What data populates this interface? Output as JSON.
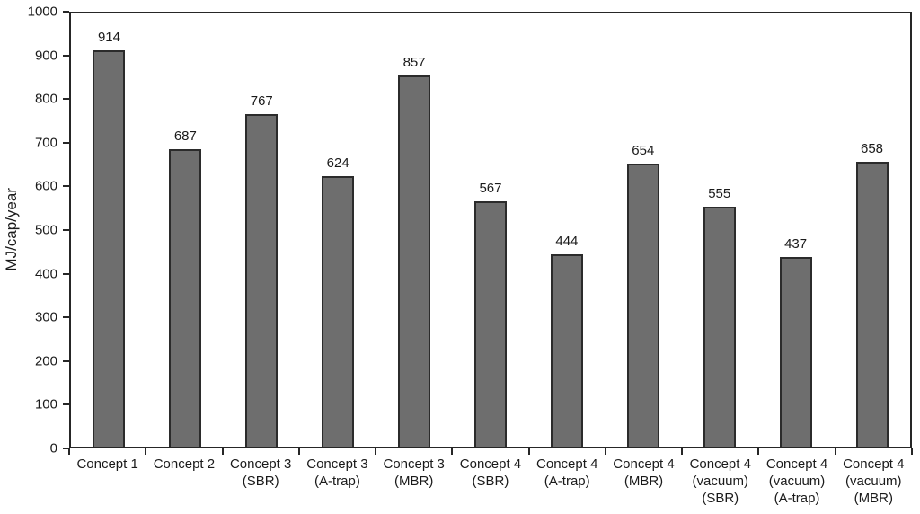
{
  "chart_data": {
    "type": "bar",
    "title": "",
    "xlabel": "",
    "ylabel": "MJ/cap/year",
    "ylim": [
      0,
      1000
    ],
    "ytick_step": 100,
    "grid": false,
    "legend": null,
    "categories": [
      [
        "Concept 1"
      ],
      [
        "Concept 2"
      ],
      [
        "Concept 3",
        "(SBR)"
      ],
      [
        "Concept 3",
        "(A-trap)"
      ],
      [
        "Concept 3",
        "(MBR)"
      ],
      [
        "Concept 4",
        "(SBR)"
      ],
      [
        "Concept 4",
        "(A-trap)"
      ],
      [
        "Concept 4",
        "(MBR)"
      ],
      [
        "Concept 4",
        "(vacuum)",
        "(SBR)"
      ],
      [
        "Concept 4",
        "(vacuum)",
        "(A-trap)"
      ],
      [
        "Concept 4",
        "(vacuum)",
        "(MBR)"
      ]
    ],
    "values": [
      914,
      687,
      767,
      624,
      857,
      567,
      444,
      654,
      555,
      437,
      658
    ],
    "value_labels": [
      "914",
      "687",
      "767",
      "624",
      "857",
      "567",
      "444",
      "654",
      "555",
      "437",
      "658"
    ],
    "colors": {
      "background": "#ffffff",
      "bar_fill": "#6e6e6e",
      "bar_border": "#2b2b2b",
      "axis": "#262626",
      "text": "#1a1a1a"
    }
  }
}
